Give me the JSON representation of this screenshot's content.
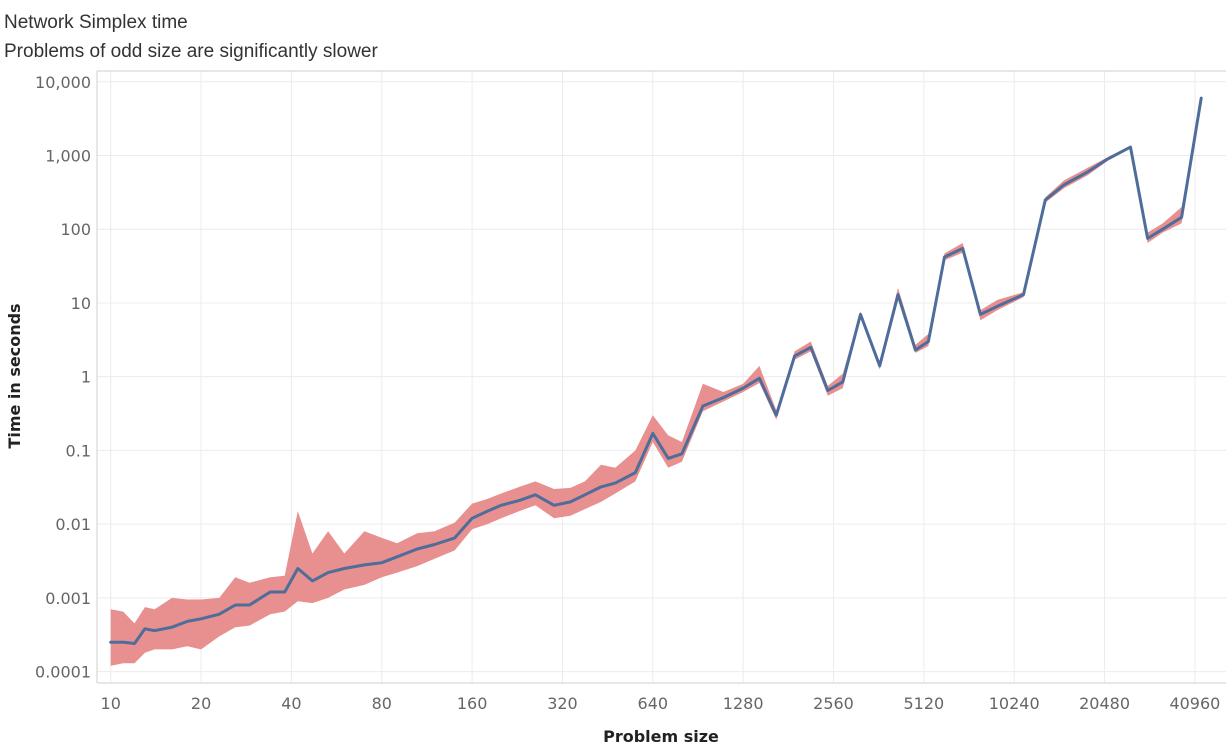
{
  "header": {
    "title": "Network Simplex time",
    "subtitle": "Problems of odd size are significantly slower"
  },
  "chart_data": {
    "type": "line",
    "title": "Network Simplex time",
    "subtitle": "Problems of odd size are significantly slower",
    "xlabel": "Problem size",
    "ylabel": "Time in seconds",
    "x_scale": "log2",
    "y_scale": "log10",
    "xlim": [
      9,
      52000
    ],
    "ylim": [
      7e-05,
      14000
    ],
    "x_ticks": [
      10,
      20,
      40,
      80,
      160,
      320,
      640,
      1280,
      2560,
      5120,
      10240,
      20480,
      40960
    ],
    "x_tick_labels": [
      "10",
      "20",
      "40",
      "80",
      "160",
      "320",
      "640",
      "1280",
      "2560",
      "5120",
      "10240",
      "20480",
      "40960"
    ],
    "y_ticks": [
      0.0001,
      0.001,
      0.01,
      0.1,
      1,
      10,
      100,
      1000,
      10000
    ],
    "y_tick_labels": [
      "0.0001",
      "0.001",
      "0.01",
      "0.1",
      "1",
      "10",
      "100",
      "1,000",
      "10,000"
    ],
    "grid": true,
    "colors": {
      "line": "#4e6d9a",
      "band": "#e88f8f",
      "grid": "#ececec",
      "axis": "#cfcfcf"
    },
    "series": [
      {
        "type": "line",
        "points": [
          [
            10,
            0.00025
          ],
          [
            11,
            0.00025
          ],
          [
            12,
            0.00024
          ],
          [
            13,
            0.00038
          ],
          [
            14,
            0.00036
          ],
          [
            16,
            0.0004
          ],
          [
            18,
            0.00048
          ],
          [
            20,
            0.00052
          ],
          [
            23,
            0.0006
          ],
          [
            26,
            0.0008
          ],
          [
            29,
            0.0008
          ],
          [
            34,
            0.0012
          ],
          [
            38,
            0.0012
          ],
          [
            42,
            0.0025
          ],
          [
            47,
            0.0017
          ],
          [
            53,
            0.0022
          ],
          [
            60,
            0.0025
          ],
          [
            70,
            0.0028
          ],
          [
            80,
            0.003
          ],
          [
            90,
            0.0036
          ],
          [
            105,
            0.0046
          ],
          [
            120,
            0.0053
          ],
          [
            140,
            0.0065
          ],
          [
            160,
            0.012
          ],
          [
            180,
            0.015
          ],
          [
            200,
            0.018
          ],
          [
            230,
            0.021
          ],
          [
            260,
            0.025
          ],
          [
            300,
            0.018
          ],
          [
            340,
            0.02
          ],
          [
            380,
            0.025
          ],
          [
            430,
            0.032
          ],
          [
            480,
            0.036
          ],
          [
            560,
            0.05
          ],
          [
            640,
            0.17
          ],
          [
            720,
            0.078
          ],
          [
            800,
            0.09
          ],
          [
            940,
            0.4
          ],
          [
            1100,
            0.52
          ],
          [
            1280,
            0.7
          ],
          [
            1450,
            0.95
          ],
          [
            1650,
            0.3
          ],
          [
            1900,
            1.9
          ],
          [
            2150,
            2.5
          ],
          [
            2450,
            0.65
          ],
          [
            2750,
            0.85
          ],
          [
            3150,
            7
          ],
          [
            3650,
            1.4
          ],
          [
            4200,
            13
          ],
          [
            4800,
            2.3
          ],
          [
            5300,
            3
          ],
          [
            6000,
            42
          ],
          [
            6900,
            55
          ],
          [
            7900,
            7
          ],
          [
            9000,
            9
          ],
          [
            11000,
            13
          ],
          [
            13000,
            250
          ],
          [
            15000,
            400
          ],
          [
            18000,
            600
          ],
          [
            21000,
            900
          ],
          [
            25000,
            1300
          ],
          [
            28500,
            75
          ],
          [
            32000,
            100
          ],
          [
            37000,
            145
          ],
          [
            43000,
            6000
          ]
        ]
      },
      {
        "type": "band",
        "upper": [
          [
            10,
            0.0007
          ],
          [
            11,
            0.00065
          ],
          [
            12,
            0.00045
          ],
          [
            13,
            0.00075
          ],
          [
            14,
            0.0007
          ],
          [
            16,
            0.001
          ],
          [
            18,
            0.00095
          ],
          [
            20,
            0.00095
          ],
          [
            23,
            0.001
          ],
          [
            26,
            0.0019
          ],
          [
            29,
            0.0016
          ],
          [
            34,
            0.0019
          ],
          [
            38,
            0.002
          ],
          [
            42,
            0.015
          ],
          [
            47,
            0.004
          ],
          [
            53,
            0.008
          ],
          [
            60,
            0.004
          ],
          [
            70,
            0.008
          ],
          [
            80,
            0.0065
          ],
          [
            90,
            0.0055
          ],
          [
            105,
            0.0075
          ],
          [
            120,
            0.008
          ],
          [
            140,
            0.0105
          ],
          [
            160,
            0.019
          ],
          [
            180,
            0.022
          ],
          [
            200,
            0.026
          ],
          [
            230,
            0.032
          ],
          [
            260,
            0.038
          ],
          [
            300,
            0.03
          ],
          [
            340,
            0.031
          ],
          [
            380,
            0.038
          ],
          [
            430,
            0.064
          ],
          [
            480,
            0.058
          ],
          [
            560,
            0.1
          ],
          [
            640,
            0.3
          ],
          [
            720,
            0.16
          ],
          [
            800,
            0.13
          ],
          [
            940,
            0.8
          ],
          [
            1100,
            0.62
          ],
          [
            1280,
            0.8
          ],
          [
            1450,
            1.4
          ],
          [
            1650,
            0.35
          ],
          [
            1900,
            2.2
          ],
          [
            2150,
            3
          ],
          [
            2450,
            0.75
          ],
          [
            2750,
            1.1
          ],
          [
            3150,
            7.7
          ],
          [
            3650,
            1.6
          ],
          [
            4200,
            16
          ],
          [
            4800,
            2.7
          ],
          [
            5300,
            3.8
          ],
          [
            6000,
            47
          ],
          [
            6900,
            65
          ],
          [
            7900,
            8
          ],
          [
            9000,
            11
          ],
          [
            11000,
            14
          ],
          [
            13000,
            270
          ],
          [
            15000,
            460
          ],
          [
            18000,
            680
          ],
          [
            21000,
            950
          ],
          [
            25000,
            1350
          ],
          [
            28500,
            90
          ],
          [
            32000,
            120
          ],
          [
            37000,
            200
          ],
          [
            43000,
            6400
          ]
        ],
        "lower": [
          [
            10,
            0.00012
          ],
          [
            11,
            0.00013
          ],
          [
            12,
            0.00013
          ],
          [
            13,
            0.00018
          ],
          [
            14,
            0.0002
          ],
          [
            16,
            0.0002
          ],
          [
            18,
            0.00022
          ],
          [
            20,
            0.0002
          ],
          [
            23,
            0.0003
          ],
          [
            26,
            0.0004
          ],
          [
            29,
            0.00042
          ],
          [
            34,
            0.0006
          ],
          [
            38,
            0.00065
          ],
          [
            42,
            0.0009
          ],
          [
            47,
            0.00085
          ],
          [
            53,
            0.001
          ],
          [
            60,
            0.0013
          ],
          [
            70,
            0.0015
          ],
          [
            80,
            0.0019
          ],
          [
            90,
            0.0022
          ],
          [
            105,
            0.0027
          ],
          [
            120,
            0.0034
          ],
          [
            140,
            0.0044
          ],
          [
            160,
            0.0085
          ],
          [
            180,
            0.01
          ],
          [
            200,
            0.012
          ],
          [
            230,
            0.015
          ],
          [
            260,
            0.018
          ],
          [
            300,
            0.012
          ],
          [
            340,
            0.013
          ],
          [
            380,
            0.016
          ],
          [
            430,
            0.02
          ],
          [
            480,
            0.026
          ],
          [
            560,
            0.038
          ],
          [
            640,
            0.13
          ],
          [
            720,
            0.058
          ],
          [
            800,
            0.07
          ],
          [
            940,
            0.34
          ],
          [
            1100,
            0.46
          ],
          [
            1280,
            0.62
          ],
          [
            1450,
            0.82
          ],
          [
            1650,
            0.26
          ],
          [
            1900,
            1.7
          ],
          [
            2150,
            2.2
          ],
          [
            2450,
            0.55
          ],
          [
            2750,
            0.7
          ],
          [
            3150,
            6.5
          ],
          [
            3650,
            1.25
          ],
          [
            4200,
            11
          ],
          [
            4800,
            2.1
          ],
          [
            5300,
            2.6
          ],
          [
            6000,
            38
          ],
          [
            6900,
            48
          ],
          [
            7900,
            5.8
          ],
          [
            9000,
            8
          ],
          [
            11000,
            12
          ],
          [
            13000,
            230
          ],
          [
            15000,
            360
          ],
          [
            18000,
            540
          ],
          [
            21000,
            850
          ],
          [
            25000,
            1250
          ],
          [
            28500,
            65
          ],
          [
            32000,
            90
          ],
          [
            37000,
            120
          ],
          [
            43000,
            5500
          ]
        ]
      }
    ]
  }
}
